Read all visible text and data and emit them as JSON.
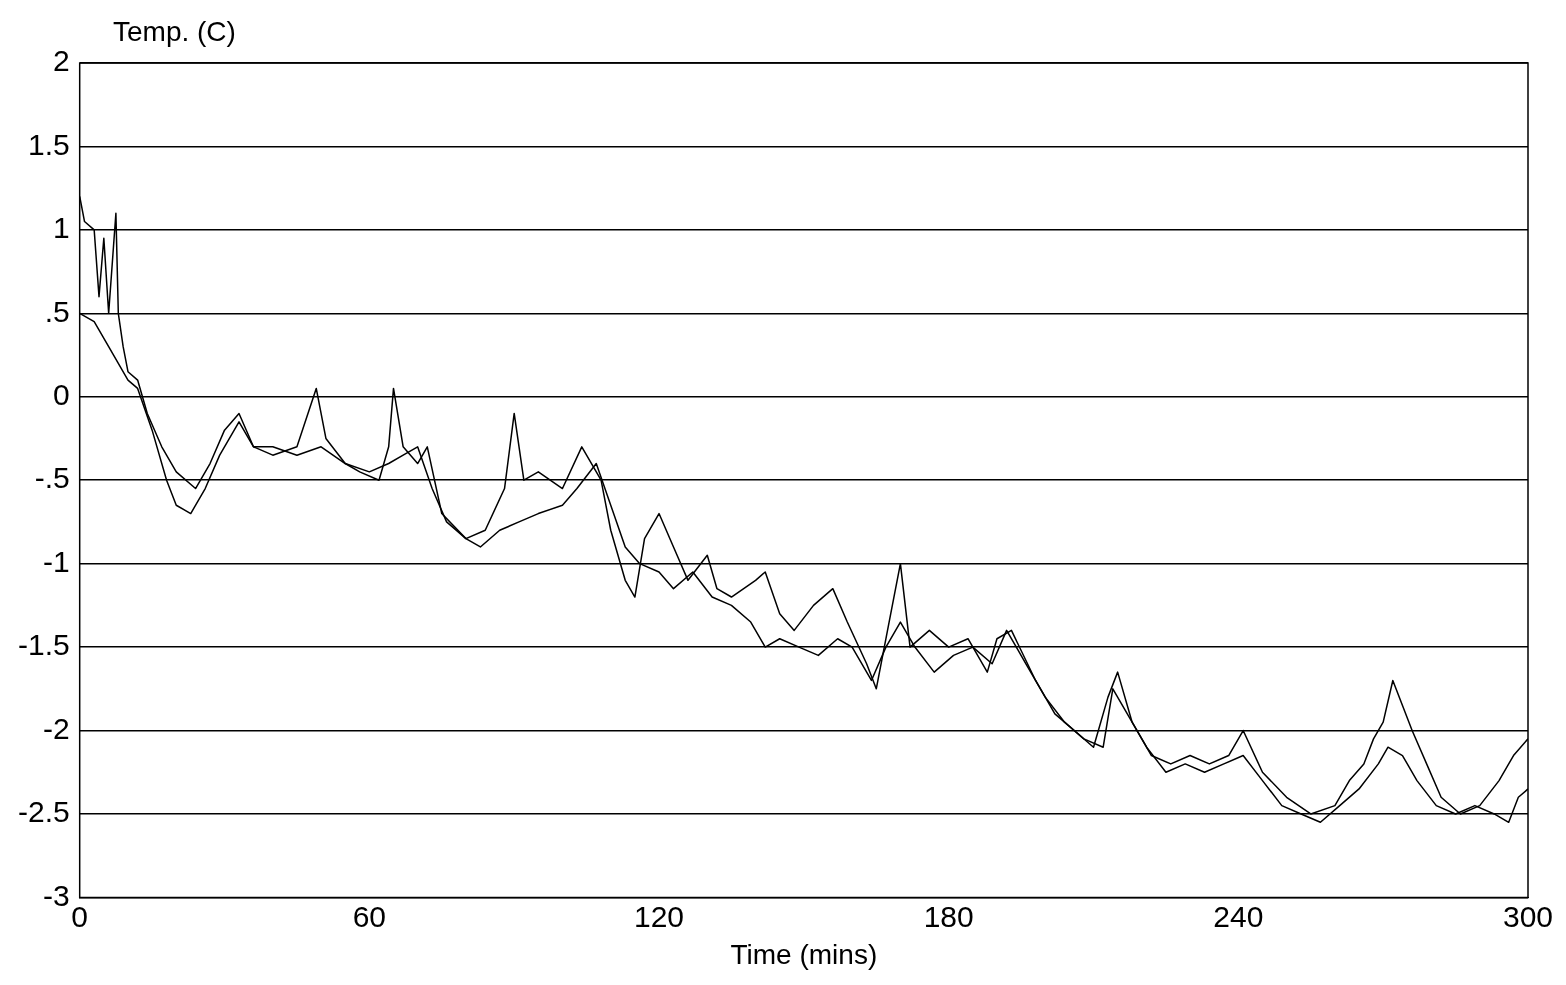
{
  "chart_data": {
    "type": "line",
    "ylabel": "Temp. (C)",
    "xlabel": "Time (mins)",
    "xlim": [
      0,
      300
    ],
    "xticks": [
      0,
      60,
      120,
      180,
      240,
      300
    ],
    "ylim": [
      -3,
      2
    ],
    "yticks": [
      -3,
      -2.5,
      -2,
      -1.5,
      -1,
      {
        "value": -0.5,
        "label": "-.5"
      },
      0,
      {
        "value": 0.5,
        "label": ".5"
      },
      1,
      1.5,
      2
    ],
    "grid": "y",
    "legend": false,
    "marker": "none",
    "line_style": "solid",
    "series": [
      {
        "color": "#000000",
        "x": [
          0,
          1,
          3,
          4,
          5,
          6,
          7,
          7.5,
          8,
          9,
          10,
          12,
          14,
          17,
          20,
          24,
          27,
          30,
          33,
          36,
          40,
          45,
          49,
          51,
          55,
          58,
          62,
          64,
          65,
          67,
          70,
          72,
          75,
          80,
          84,
          88,
          90,
          92,
          95,
          100,
          104,
          108,
          110,
          113,
          115,
          117,
          120,
          123,
          126,
          130,
          132,
          135,
          140,
          142,
          145,
          148,
          152,
          156,
          159,
          163,
          165,
          168,
          170,
          172,
          176,
          180,
          184,
          188,
          190,
          193,
          198,
          202,
          206,
          210,
          213,
          215,
          218,
          222,
          226,
          230,
          234,
          238,
          241,
          245,
          250,
          255,
          260,
          263,
          266,
          268,
          270,
          272,
          274,
          276,
          279,
          282,
          286,
          290,
          294,
          297,
          300
        ],
        "values": [
          1.2,
          1.05,
          1.0,
          0.6,
          0.95,
          0.5,
          0.9,
          1.1,
          0.5,
          0.3,
          0.15,
          0.1,
          -0.1,
          -0.3,
          -0.45,
          -0.55,
          -0.4,
          -0.2,
          -0.1,
          -0.3,
          -0.35,
          -0.3,
          0.05,
          -0.25,
          -0.4,
          -0.45,
          -0.5,
          -0.3,
          0.05,
          -0.3,
          -0.4,
          -0.3,
          -0.7,
          -0.85,
          -0.8,
          -0.55,
          -0.1,
          -0.5,
          -0.45,
          -0.55,
          -0.3,
          -0.5,
          -0.8,
          -1.1,
          -1.2,
          -0.85,
          -0.7,
          -0.9,
          -1.1,
          -0.95,
          -1.15,
          -1.2,
          -1.1,
          -1.05,
          -1.3,
          -1.4,
          -1.25,
          -1.15,
          -1.35,
          -1.6,
          -1.75,
          -1.3,
          -1.0,
          -1.5,
          -1.4,
          -1.5,
          -1.45,
          -1.65,
          -1.45,
          -1.4,
          -1.7,
          -1.9,
          -2.0,
          -2.1,
          -1.8,
          -1.65,
          -1.95,
          -2.15,
          -2.2,
          -2.15,
          -2.2,
          -2.15,
          -2.0,
          -2.25,
          -2.4,
          -2.5,
          -2.45,
          -2.3,
          -2.2,
          -2.05,
          -1.95,
          -1.7,
          -1.85,
          -2.0,
          -2.2,
          -2.4,
          -2.5,
          -2.45,
          -2.3,
          -2.15,
          -2.05
        ]
      },
      {
        "color": "#000000",
        "x": [
          0,
          3,
          6,
          8,
          10,
          12,
          15,
          18,
          20,
          23,
          26,
          29,
          33,
          36,
          40,
          45,
          50,
          55,
          60,
          64,
          67,
          70,
          73,
          76,
          80,
          83,
          87,
          91,
          95,
          100,
          103,
          107,
          110,
          113,
          116,
          120,
          123,
          127,
          131,
          135,
          139,
          142,
          145,
          149,
          153,
          157,
          160,
          164,
          167,
          170,
          173,
          177,
          181,
          185,
          189,
          192,
          196,
          200,
          204,
          208,
          212,
          214,
          217,
          221,
          225,
          229,
          233,
          237,
          241,
          245,
          249,
          253,
          257,
          261,
          265,
          269,
          271,
          274,
          277,
          281,
          285,
          289,
          293,
          296,
          298,
          300
        ],
        "values": [
          0.5,
          0.45,
          0.3,
          0.2,
          0.1,
          0.05,
          -0.2,
          -0.5,
          -0.65,
          -0.7,
          -0.55,
          -0.35,
          -0.15,
          -0.3,
          -0.3,
          -0.35,
          -0.3,
          -0.4,
          -0.45,
          -0.4,
          -0.35,
          -0.3,
          -0.55,
          -0.75,
          -0.85,
          -0.9,
          -0.8,
          -0.75,
          -0.7,
          -0.65,
          -0.55,
          -0.4,
          -0.65,
          -0.9,
          -1.0,
          -1.05,
          -1.15,
          -1.05,
          -1.2,
          -1.25,
          -1.35,
          -1.5,
          -1.45,
          -1.5,
          -1.55,
          -1.45,
          -1.5,
          -1.7,
          -1.5,
          -1.35,
          -1.5,
          -1.65,
          -1.55,
          -1.5,
          -1.6,
          -1.4,
          -1.6,
          -1.8,
          -1.95,
          -2.05,
          -2.1,
          -1.75,
          -1.9,
          -2.1,
          -2.25,
          -2.2,
          -2.25,
          -2.2,
          -2.15,
          -2.3,
          -2.45,
          -2.5,
          -2.55,
          -2.45,
          -2.35,
          -2.2,
          -2.1,
          -2.15,
          -2.3,
          -2.45,
          -2.5,
          -2.45,
          -2.5,
          -2.55,
          -2.4,
          -2.35
        ]
      }
    ]
  }
}
